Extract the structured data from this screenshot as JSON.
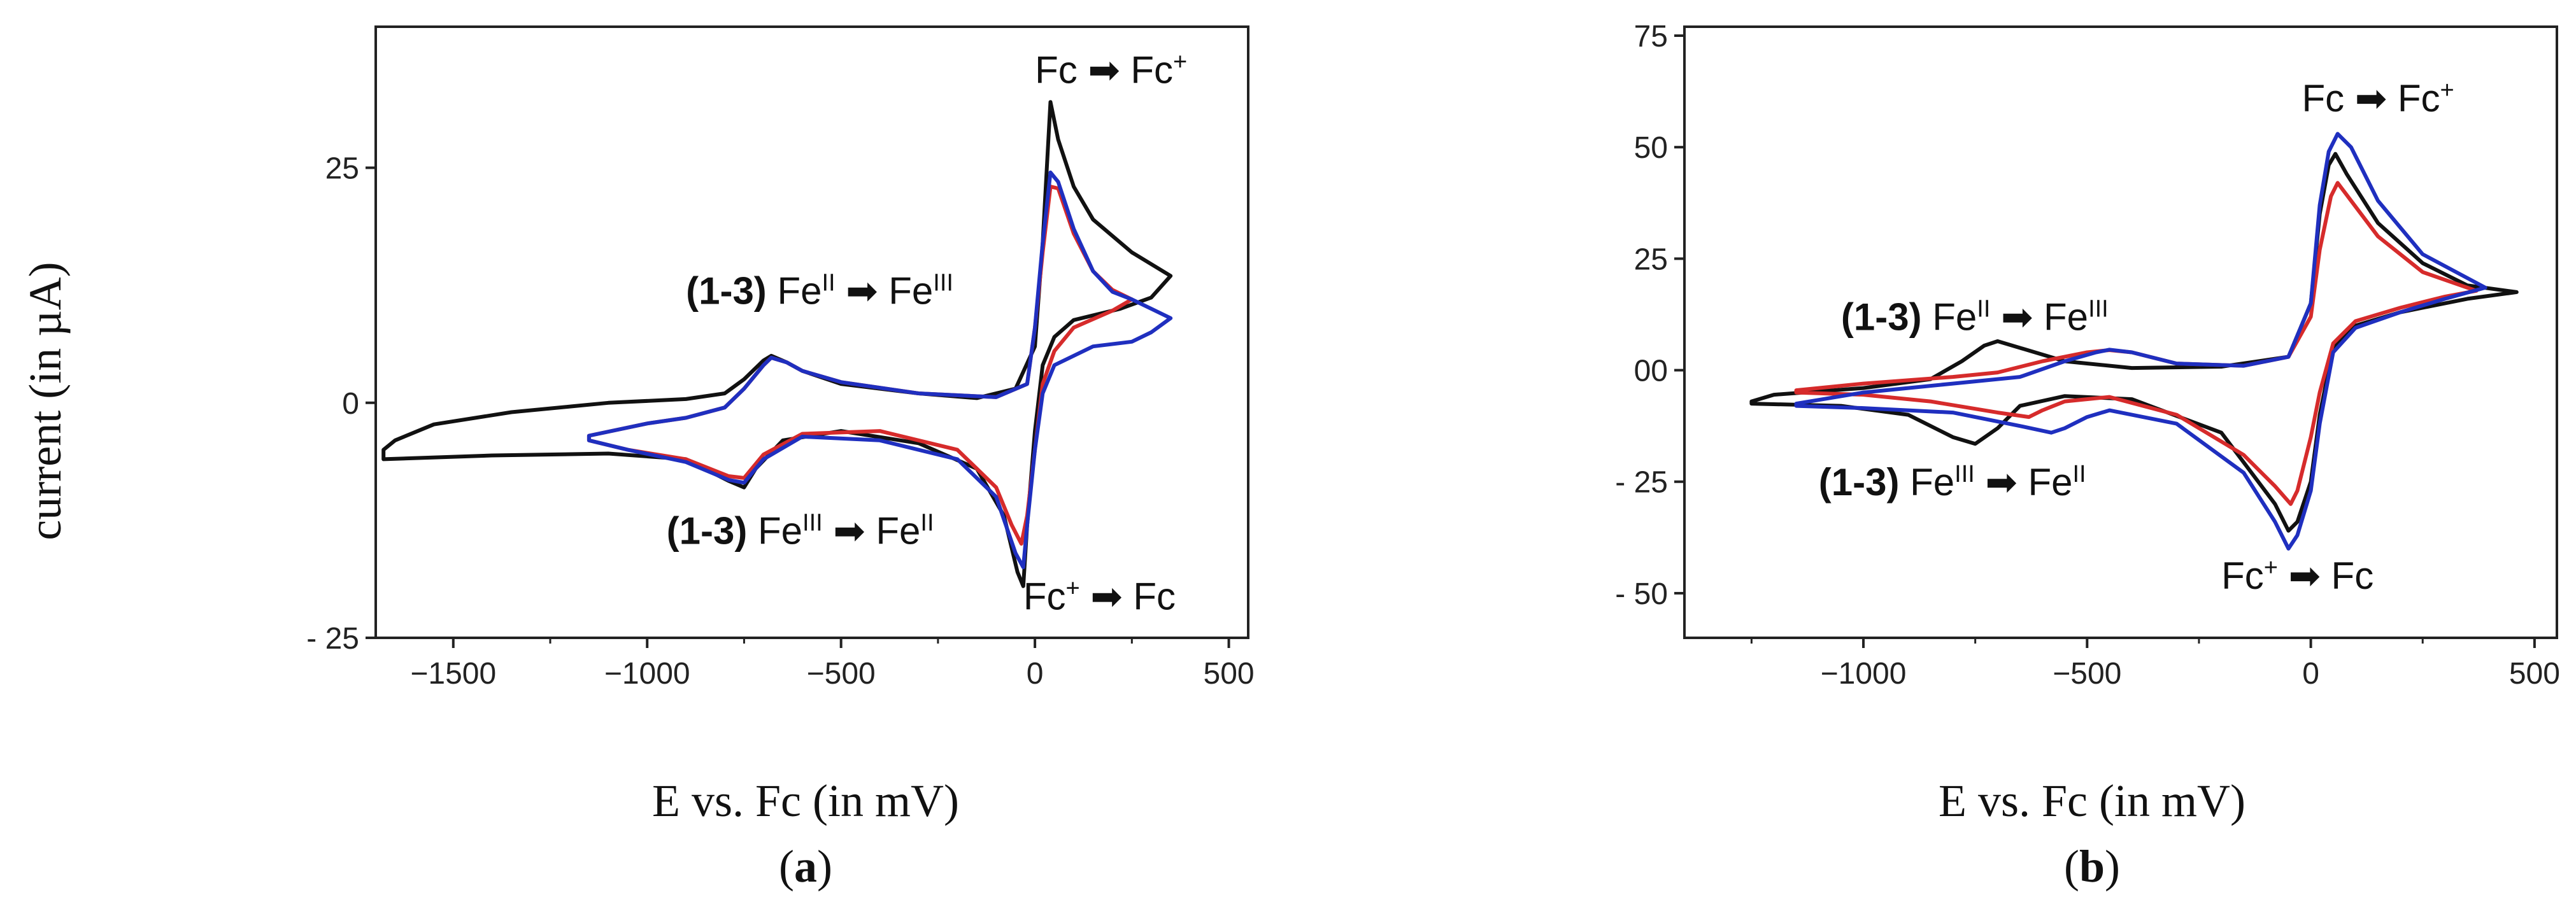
{
  "figure": {
    "ylabel": "current (in µA)",
    "arrow_glyph": "➡"
  },
  "chart_data": [
    {
      "type": "line",
      "panel_label": "a",
      "xlabel": "E vs. Fc (in mV)",
      "xlim": [
        -1700,
        550
      ],
      "ylim": [
        -25,
        40
      ],
      "x_ticks": [
        -1500,
        -1000,
        -500,
        0,
        500
      ],
      "y_ticks": [
        25,
        0,
        -25
      ],
      "colors": {
        "black": "#111111",
        "red": "#d62b2b",
        "blue": "#1f2fbf"
      },
      "annotations": [
        {
          "bold": "",
          "base": "Fc ",
          "sup1": "",
          "mid": "Fc",
          "sup2": "+",
          "at": [
            0,
            34
          ]
        },
        {
          "bold": "(1-3)",
          "base": " Fe",
          "sup1": "II",
          "mid": " Fe",
          "sup2": "III",
          "at": [
            -900,
            10.5
          ]
        },
        {
          "bold": "(1-3)",
          "base": " Fe",
          "sup1": "III",
          "mid": " Fe",
          "sup2": "II",
          "at": [
            -950,
            -15
          ]
        },
        {
          "bold": "",
          "base": "Fc",
          "sup1": "+",
          "mid": "Fc",
          "sup2": "",
          "at": [
            -30,
            -22
          ]
        }
      ],
      "series": [
        {
          "color": "black",
          "points": [
            [
              -1680,
              -5
            ],
            [
              -1650,
              -4
            ],
            [
              -1550,
              -2.3
            ],
            [
              -1350,
              -1
            ],
            [
              -1100,
              0
            ],
            [
              -900,
              0.4
            ],
            [
              -800,
              1
            ],
            [
              -750,
              2.5
            ],
            [
              -700,
              4.5
            ],
            [
              -680,
              5
            ],
            [
              -640,
              4.3
            ],
            [
              -600,
              3.4
            ],
            [
              -500,
              2
            ],
            [
              -300,
              1
            ],
            [
              -150,
              0.5
            ],
            [
              -50,
              1.5
            ],
            [
              0,
              6
            ],
            [
              20,
              17
            ],
            [
              40,
              32
            ],
            [
              60,
              28
            ],
            [
              100,
              23
            ],
            [
              150,
              19.5
            ],
            [
              250,
              16
            ],
            [
              350,
              13.5
            ],
            [
              300,
              11.2
            ],
            [
              220,
              10
            ],
            [
              100,
              8.8
            ],
            [
              50,
              7
            ],
            [
              20,
              4
            ],
            [
              0,
              -3
            ],
            [
              -20,
              -13
            ],
            [
              -30,
              -19.5
            ],
            [
              -45,
              -18
            ],
            [
              -80,
              -12
            ],
            [
              -150,
              -7
            ],
            [
              -300,
              -4.3
            ],
            [
              -500,
              -3
            ],
            [
              -650,
              -4
            ],
            [
              -720,
              -7
            ],
            [
              -750,
              -9
            ],
            [
              -790,
              -8.3
            ],
            [
              -900,
              -6
            ],
            [
              -1100,
              -5.4
            ],
            [
              -1400,
              -5.6
            ],
            [
              -1680,
              -6
            ],
            [
              -1680,
              -5
            ]
          ]
        },
        {
          "color": "red",
          "points": [
            [
              -1150,
              -3.5
            ],
            [
              -1000,
              -2.2
            ],
            [
              -900,
              -1.6
            ],
            [
              -800,
              -0.5
            ],
            [
              -750,
              1.5
            ],
            [
              -700,
              4
            ],
            [
              -680,
              4.8
            ],
            [
              -640,
              4.3
            ],
            [
              -600,
              3.4
            ],
            [
              -500,
              2.2
            ],
            [
              -300,
              1
            ],
            [
              -100,
              0.6
            ],
            [
              -20,
              2
            ],
            [
              0,
              8
            ],
            [
              20,
              16
            ],
            [
              40,
              23
            ],
            [
              60,
              22.8
            ],
            [
              100,
              18
            ],
            [
              150,
              14
            ],
            [
              200,
              12
            ],
            [
              250,
              11
            ],
            [
              200,
              9.8
            ],
            [
              100,
              8
            ],
            [
              50,
              5.5
            ],
            [
              20,
              2
            ],
            [
              0,
              -5
            ],
            [
              -20,
              -12
            ],
            [
              -35,
              -15
            ],
            [
              -60,
              -13
            ],
            [
              -100,
              -9
            ],
            [
              -200,
              -5
            ],
            [
              -400,
              -3
            ],
            [
              -600,
              -3.3
            ],
            [
              -700,
              -5.5
            ],
            [
              -750,
              -8
            ],
            [
              -790,
              -7.8
            ],
            [
              -900,
              -6
            ],
            [
              -1050,
              -5
            ],
            [
              -1150,
              -4
            ],
            [
              -1150,
              -3.5
            ]
          ]
        },
        {
          "color": "blue",
          "points": [
            [
              -1150,
              -3.5
            ],
            [
              -1000,
              -2.2
            ],
            [
              -900,
              -1.6
            ],
            [
              -800,
              -0.5
            ],
            [
              -750,
              1.5
            ],
            [
              -700,
              4
            ],
            [
              -680,
              4.8
            ],
            [
              -640,
              4.3
            ],
            [
              -600,
              3.4
            ],
            [
              -500,
              2.2
            ],
            [
              -300,
              1
            ],
            [
              -100,
              0.6
            ],
            [
              -20,
              2
            ],
            [
              0,
              8
            ],
            [
              20,
              17
            ],
            [
              40,
              24.5
            ],
            [
              60,
              23.5
            ],
            [
              100,
              18.5
            ],
            [
              150,
              14
            ],
            [
              200,
              11.8
            ],
            [
              250,
              11
            ],
            [
              300,
              10
            ],
            [
              350,
              9
            ],
            [
              300,
              7.5
            ],
            [
              250,
              6.5
            ],
            [
              150,
              6
            ],
            [
              50,
              4
            ],
            [
              20,
              1
            ],
            [
              0,
              -5
            ],
            [
              -20,
              -13
            ],
            [
              -30,
              -17.5
            ],
            [
              -50,
              -16
            ],
            [
              -100,
              -10
            ],
            [
              -200,
              -6
            ],
            [
              -400,
              -4
            ],
            [
              -600,
              -3.6
            ],
            [
              -700,
              -6
            ],
            [
              -750,
              -8.5
            ],
            [
              -790,
              -8.2
            ],
            [
              -900,
              -6.3
            ],
            [
              -1050,
              -5
            ],
            [
              -1150,
              -4
            ],
            [
              -1150,
              -3.5
            ]
          ]
        }
      ]
    },
    {
      "type": "line",
      "panel_label": "b",
      "xlabel": "E vs. Fc (in mV)",
      "xlim": [
        -1400,
        550
      ],
      "ylim": [
        -60,
        77
      ],
      "x_ticks": [
        -1000,
        -500,
        0,
        500
      ],
      "y_ticks": [
        75,
        50,
        25,
        "00",
        -25,
        -50
      ],
      "colors": {
        "black": "#111111",
        "red": "#d62b2b",
        "blue": "#1f2fbf"
      },
      "annotations": [
        {
          "bold": "",
          "base": "Fc ",
          "sup1": "",
          "mid": "Fc",
          "sup2": "+",
          "at": [
            -20,
            58
          ]
        },
        {
          "bold": "(1-3)",
          "base": " Fe",
          "sup1": "II",
          "mid": " Fe",
          "sup2": "III",
          "at": [
            -1050,
            9
          ]
        },
        {
          "bold": "(1-3)",
          "base": " Fe",
          "sup1": "III",
          "mid": " Fe",
          "sup2": "II",
          "at": [
            -1100,
            -28
          ]
        },
        {
          "bold": "",
          "base": "Fc",
          "sup1": "+",
          "mid": "Fc",
          "sup2": "",
          "at": [
            -200,
            -49
          ]
        }
      ],
      "series": [
        {
          "color": "black",
          "points": [
            [
              -1250,
              -7
            ],
            [
              -1200,
              -5.5
            ],
            [
              -1000,
              -4
            ],
            [
              -850,
              -2
            ],
            [
              -780,
              2
            ],
            [
              -730,
              5.5
            ],
            [
              -700,
              6.5
            ],
            [
              -650,
              5
            ],
            [
              -550,
              2
            ],
            [
              -400,
              0.5
            ],
            [
              -200,
              0.8
            ],
            [
              -50,
              3
            ],
            [
              0,
              15
            ],
            [
              20,
              35
            ],
            [
              40,
              46
            ],
            [
              55,
              48.5
            ],
            [
              80,
              44
            ],
            [
              150,
              33
            ],
            [
              250,
              24
            ],
            [
              350,
              19
            ],
            [
              460,
              17.5
            ],
            [
              350,
              16
            ],
            [
              200,
              13
            ],
            [
              100,
              10
            ],
            [
              50,
              5
            ],
            [
              20,
              -10
            ],
            [
              0,
              -25
            ],
            [
              -30,
              -34
            ],
            [
              -50,
              -36
            ],
            [
              -80,
              -30
            ],
            [
              -200,
              -14
            ],
            [
              -400,
              -6.5
            ],
            [
              -550,
              -5.8
            ],
            [
              -650,
              -8
            ],
            [
              -700,
              -13
            ],
            [
              -750,
              -16.5
            ],
            [
              -800,
              -15
            ],
            [
              -900,
              -10
            ],
            [
              -1050,
              -8
            ],
            [
              -1250,
              -7.5
            ],
            [
              -1250,
              -7
            ]
          ]
        },
        {
          "color": "red",
          "points": [
            [
              -1150,
              -4.5
            ],
            [
              -1000,
              -3
            ],
            [
              -800,
              -1.5
            ],
            [
              -700,
              -0.5
            ],
            [
              -600,
              2
            ],
            [
              -500,
              4
            ],
            [
              -450,
              4.5
            ],
            [
              -400,
              4
            ],
            [
              -300,
              1.5
            ],
            [
              -150,
              1
            ],
            [
              -50,
              3
            ],
            [
              0,
              12
            ],
            [
              20,
              27
            ],
            [
              45,
              39
            ],
            [
              60,
              42
            ],
            [
              90,
              38
            ],
            [
              150,
              30
            ],
            [
              250,
              22
            ],
            [
              370,
              17.8
            ],
            [
              300,
              16.5
            ],
            [
              200,
              14
            ],
            [
              100,
              11
            ],
            [
              50,
              6
            ],
            [
              20,
              -5
            ],
            [
              0,
              -15
            ],
            [
              -30,
              -27
            ],
            [
              -45,
              -30
            ],
            [
              -80,
              -26
            ],
            [
              -150,
              -19
            ],
            [
              -300,
              -10
            ],
            [
              -450,
              -6
            ],
            [
              -550,
              -7
            ],
            [
              -600,
              -9
            ],
            [
              -630,
              -10.5
            ],
            [
              -700,
              -9.5
            ],
            [
              -850,
              -7
            ],
            [
              -1000,
              -5.5
            ],
            [
              -1150,
              -5
            ],
            [
              -1150,
              -4.5
            ]
          ]
        },
        {
          "color": "blue",
          "points": [
            [
              -1150,
              -7.5
            ],
            [
              -1000,
              -5
            ],
            [
              -800,
              -3
            ],
            [
              -650,
              -1.5
            ],
            [
              -550,
              2
            ],
            [
              -480,
              4
            ],
            [
              -450,
              4.6
            ],
            [
              -400,
              4
            ],
            [
              -300,
              1.5
            ],
            [
              -150,
              1
            ],
            [
              -50,
              3
            ],
            [
              0,
              15
            ],
            [
              20,
              37
            ],
            [
              40,
              49
            ],
            [
              60,
              53
            ],
            [
              90,
              50
            ],
            [
              150,
              38
            ],
            [
              250,
              26
            ],
            [
              390,
              18.5
            ],
            [
              300,
              16
            ],
            [
              200,
              13
            ],
            [
              100,
              9.5
            ],
            [
              50,
              4
            ],
            [
              20,
              -12
            ],
            [
              0,
              -27
            ],
            [
              -30,
              -37
            ],
            [
              -50,
              -40
            ],
            [
              -80,
              -34
            ],
            [
              -150,
              -23
            ],
            [
              -300,
              -12
            ],
            [
              -450,
              -9
            ],
            [
              -500,
              -10.5
            ],
            [
              -550,
              -13
            ],
            [
              -580,
              -14
            ],
            [
              -650,
              -12.5
            ],
            [
              -800,
              -9.5
            ],
            [
              -1000,
              -8.5
            ],
            [
              -1150,
              -8
            ],
            [
              -1150,
              -7.5
            ]
          ]
        }
      ]
    }
  ]
}
